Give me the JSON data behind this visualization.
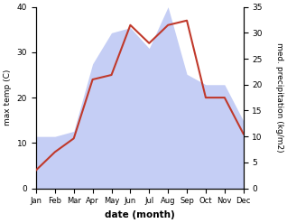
{
  "months": [
    "Jan",
    "Feb",
    "Mar",
    "Apr",
    "May",
    "Jun",
    "Jul",
    "Aug",
    "Sep",
    "Oct",
    "Nov",
    "Dec"
  ],
  "temperature": [
    4,
    8,
    11,
    24,
    25,
    36,
    32,
    36,
    37,
    20,
    20,
    12
  ],
  "precipitation": [
    10,
    10,
    11,
    24,
    30,
    31,
    27,
    35,
    22,
    20,
    20,
    13
  ],
  "temp_color": "#c0392b",
  "precip_color_fill": "#c5cef5",
  "temp_ylim": [
    0,
    40
  ],
  "precip_ylim": [
    0,
    35
  ],
  "temp_yticks": [
    0,
    10,
    20,
    30,
    40
  ],
  "precip_yticks": [
    0,
    5,
    10,
    15,
    20,
    25,
    30,
    35
  ],
  "xlabel": "date (month)",
  "ylabel_left": "max temp (C)",
  "ylabel_right": "med. precipitation (kg/m2)",
  "bg_color": "#ffffff"
}
